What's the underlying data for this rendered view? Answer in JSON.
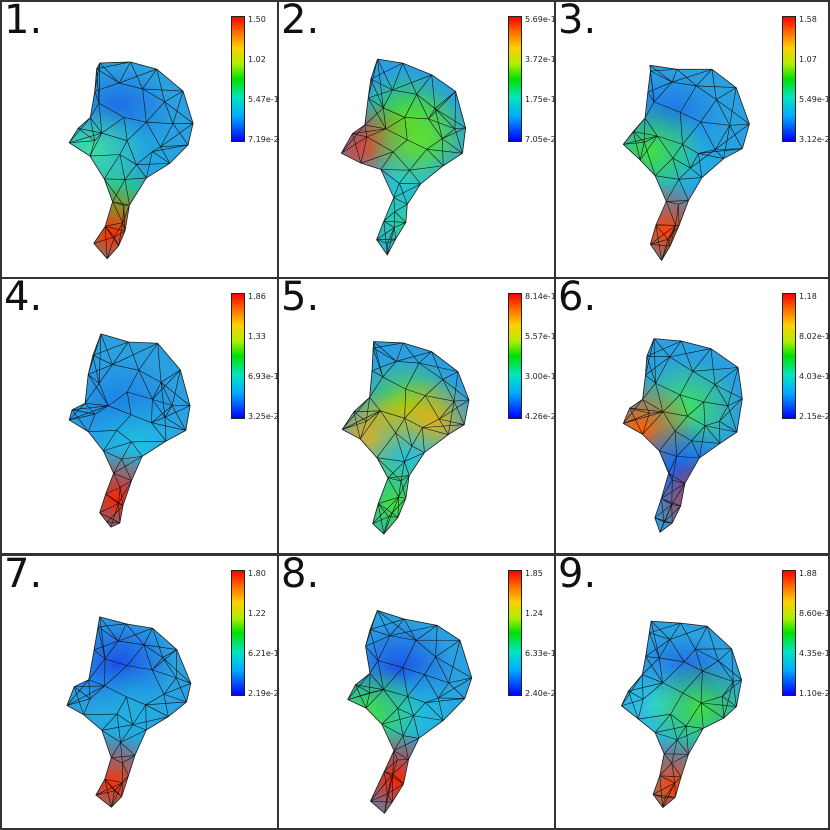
{
  "panels": [
    {
      "label": "1.",
      "ticks": [
        "1.50",
        "1.02",
        "5.47e-1",
        "7.19e-2"
      ],
      "blobs": [
        [
          "#1a60e8",
          0.42,
          0.28
        ],
        [
          "#20a8e0",
          0.55,
          0.45
        ],
        [
          "#30e040",
          0.4,
          0.76
        ],
        [
          "#ff3000",
          0.37,
          0.88
        ],
        [
          "#40e0a0",
          0.22,
          0.45
        ]
      ]
    },
    {
      "label": "2.",
      "ticks": [
        "5.69e-1",
        "3.72e-1",
        "1.75e-1",
        "7.05e-2"
      ],
      "blobs": [
        [
          "#40e020",
          0.5,
          0.3
        ],
        [
          "#ff3010",
          0.24,
          0.46
        ],
        [
          "#20c8e0",
          0.45,
          0.6
        ],
        [
          "#60e030",
          0.6,
          0.4
        ],
        [
          "#30d0a0",
          0.5,
          0.84
        ]
      ]
    },
    {
      "label": "3.",
      "ticks": [
        "1.58",
        "1.07",
        "5.49e-1",
        "3.12e-2"
      ],
      "blobs": [
        [
          "#1a70e8",
          0.4,
          0.3
        ],
        [
          "#20b0e8",
          0.5,
          0.5
        ],
        [
          "#40e040",
          0.26,
          0.46
        ],
        [
          "#ff4000",
          0.37,
          0.87
        ]
      ]
    },
    {
      "label": "4.",
      "ticks": [
        "1.86",
        "1.33",
        "6.93e-1",
        "3.25e-2"
      ],
      "blobs": [
        [
          "#1a80e8",
          0.45,
          0.35
        ],
        [
          "#20c0e0",
          0.55,
          0.55
        ],
        [
          "#ff2000",
          0.4,
          0.82
        ]
      ]
    },
    {
      "label": "5.",
      "ticks": [
        "8.14e-1",
        "5.57e-1",
        "3.00e-1",
        "4.26e-2"
      ],
      "blobs": [
        [
          "#60e020",
          0.5,
          0.35
        ],
        [
          "#ffb000",
          0.26,
          0.52
        ],
        [
          "#ffb000",
          0.65,
          0.45
        ],
        [
          "#20c0e0",
          0.5,
          0.62
        ],
        [
          "#40e040",
          0.4,
          0.85
        ]
      ]
    },
    {
      "label": "6.",
      "ticks": [
        "1.18",
        "8.02e-1",
        "4.03e-1",
        "2.15e-2"
      ],
      "blobs": [
        [
          "#40e060",
          0.52,
          0.35
        ],
        [
          "#ff6000",
          0.18,
          0.46
        ],
        [
          "#1a60e8",
          0.48,
          0.68
        ],
        [
          "#ff2000",
          0.68,
          0.85
        ]
      ]
    },
    {
      "label": "7.",
      "ticks": [
        "1.80",
        "1.22",
        "6.21e-1",
        "2.19e-2"
      ],
      "blobs": [
        [
          "#1a50e8",
          0.42,
          0.25
        ],
        [
          "#20b0e0",
          0.5,
          0.5
        ],
        [
          "#ff3000",
          0.37,
          0.86
        ]
      ]
    },
    {
      "label": "8.",
      "ticks": [
        "1.85",
        "1.24",
        "6.33e-1",
        "2.40e-2"
      ],
      "blobs": [
        [
          "#1a50e8",
          0.45,
          0.28
        ],
        [
          "#20c0e0",
          0.55,
          0.5
        ],
        [
          "#40e040",
          0.22,
          0.5
        ],
        [
          "#ff2000",
          0.43,
          0.84
        ]
      ]
    },
    {
      "label": "9.",
      "ticks": [
        "1.88",
        "8.60e-1",
        "4.35e-1",
        "1.10e-2"
      ],
      "blobs": [
        [
          "#1a50e8",
          0.48,
          0.35
        ],
        [
          "#30d0e0",
          0.3,
          0.45
        ],
        [
          "#40e040",
          0.62,
          0.48
        ],
        [
          "#ff4000",
          0.43,
          0.88
        ]
      ]
    }
  ]
}
